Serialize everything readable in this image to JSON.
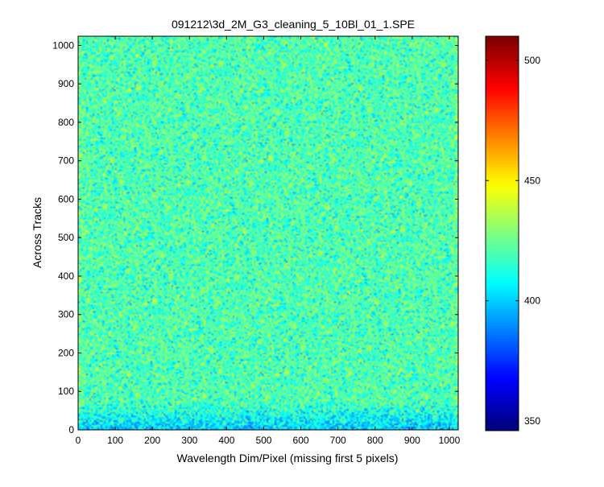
{
  "chart_data": {
    "type": "heatmap",
    "title": "091212\\3d_2M_G3_cleaning_5_10Bl_01_1.SPE",
    "xlabel": "Wavelength Dim/Pixel (missing first 5 pixels)",
    "ylabel": "Across Tracks",
    "xlim": [
      0,
      1024
    ],
    "ylim": [
      0,
      1024
    ],
    "xticks": [
      0,
      100,
      200,
      300,
      400,
      500,
      600,
      700,
      800,
      900,
      1000
    ],
    "yticks": [
      0,
      100,
      200,
      300,
      400,
      500,
      600,
      700,
      800,
      900,
      1000
    ],
    "colorbar": {
      "colormap": "jet",
      "clim": [
        346,
        510
      ],
      "ticks": [
        350,
        400,
        450,
        500
      ]
    },
    "field": {
      "typical_value": 420,
      "bottom_edge_value": 400,
      "range_visible": [
        385,
        455
      ]
    },
    "grid": false,
    "legend": "none"
  }
}
